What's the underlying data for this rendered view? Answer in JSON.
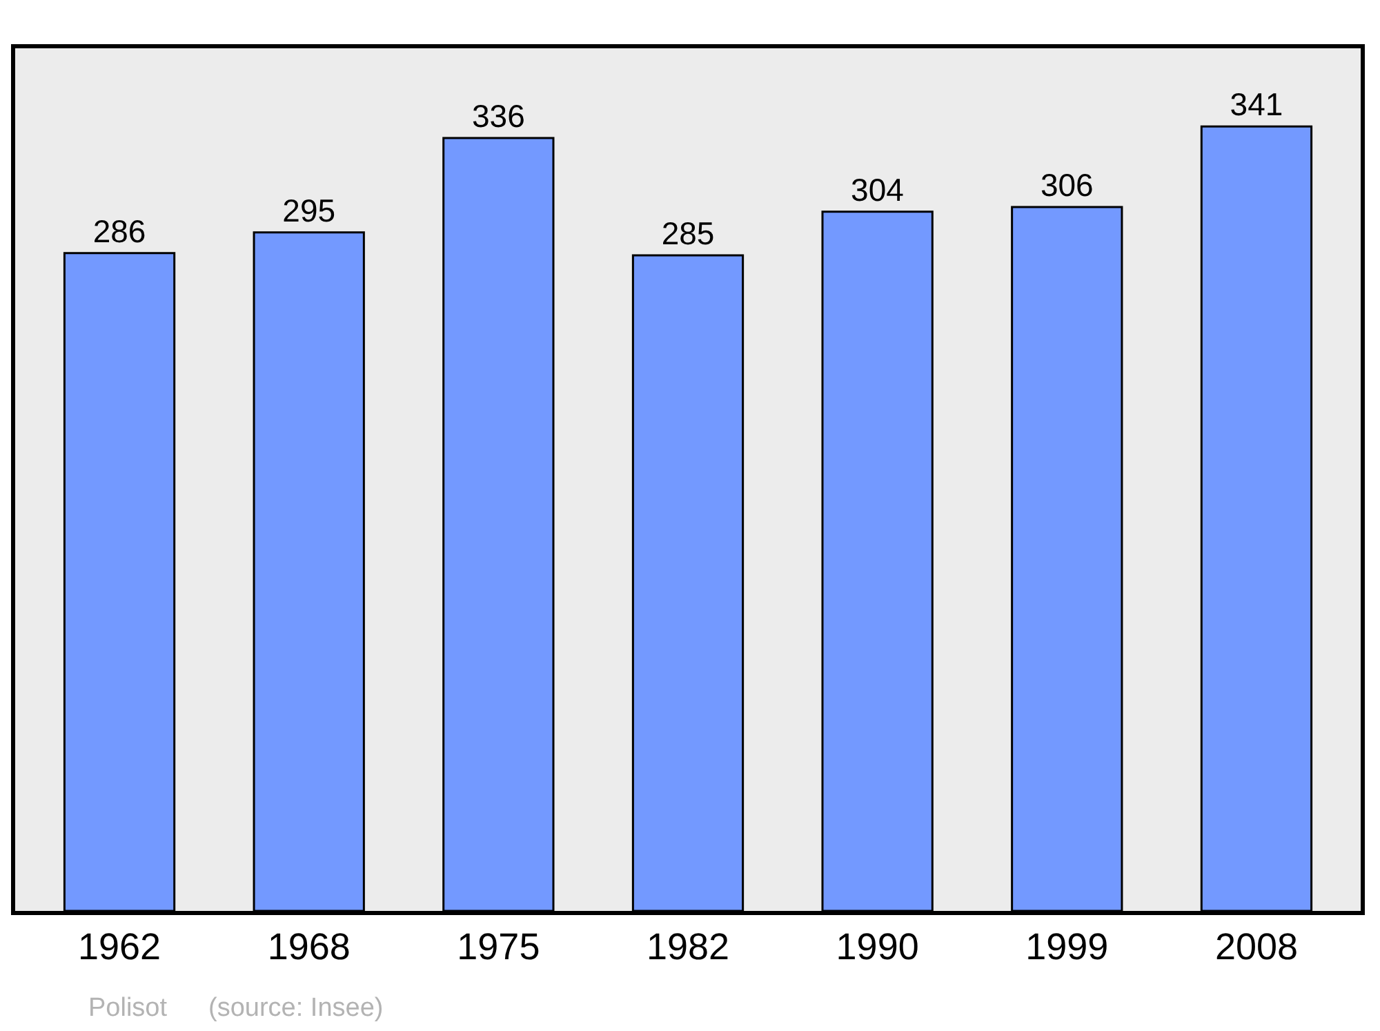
{
  "chart_data": {
    "type": "bar",
    "categories": [
      "1962",
      "1968",
      "1975",
      "1982",
      "1990",
      "1999",
      "2008"
    ],
    "values": [
      286,
      295,
      336,
      285,
      304,
      306,
      341
    ],
    "color": "#7399ff",
    "ylim": [
      0,
      375
    ],
    "data_labels": true,
    "tick_labels": "x",
    "annotations": [
      "Polisot",
      "(source: Insee)"
    ]
  }
}
